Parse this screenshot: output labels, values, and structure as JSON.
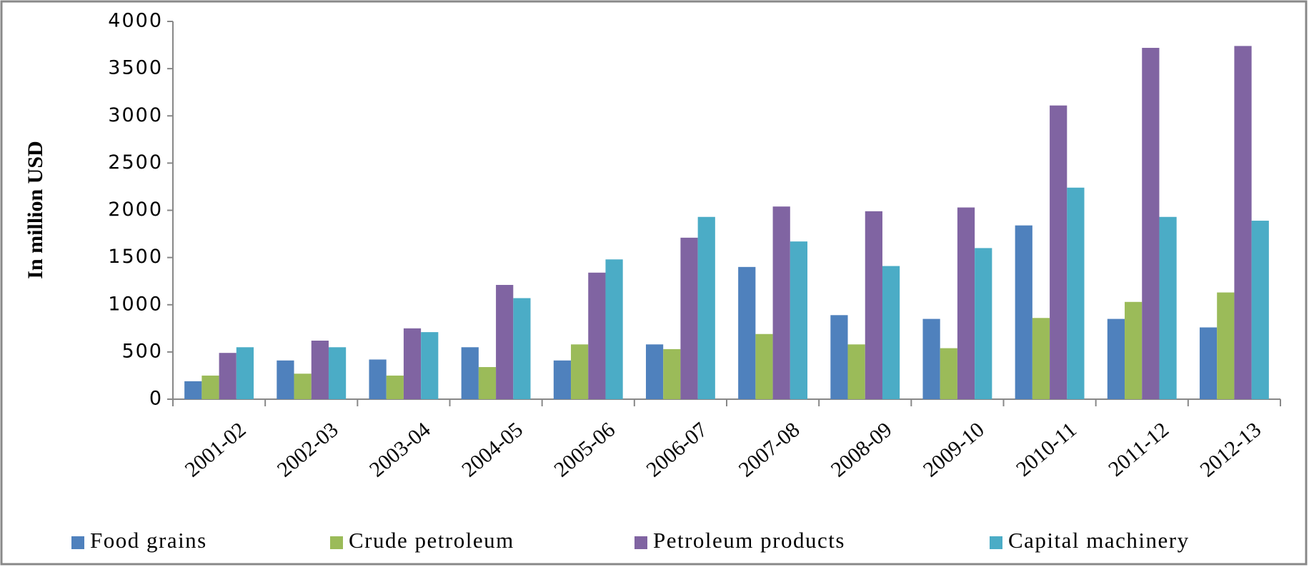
{
  "chart_data": {
    "type": "bar",
    "y_label": "In million USD",
    "categories": [
      "2001-02",
      "2002-03",
      "2003-04",
      "2004-05",
      "2005-06",
      "2006-07",
      "2007-08",
      "2008-09",
      "2009-10",
      "2010-11",
      "2011-12",
      "2012-13"
    ],
    "series": [
      {
        "name": "Food grains",
        "color": "#4f81bd",
        "values": [
          190,
          410,
          420,
          550,
          410,
          580,
          1400,
          890,
          850,
          1840,
          850,
          760
        ]
      },
      {
        "name": "Crude petroleum",
        "color": "#9bbb59",
        "values": [
          250,
          270,
          250,
          340,
          580,
          530,
          690,
          580,
          540,
          860,
          1030,
          1130
        ]
      },
      {
        "name": "Petroleum products",
        "color": "#8064a2",
        "values": [
          490,
          620,
          750,
          1210,
          1340,
          1710,
          2040,
          1990,
          2030,
          3110,
          3720,
          3740
        ]
      },
      {
        "name": "Capital machinery",
        "color": "#4bacc6",
        "values": [
          550,
          550,
          710,
          1070,
          1480,
          1930,
          1670,
          1410,
          1600,
          2240,
          1930,
          1890
        ]
      }
    ],
    "ylim": [
      0,
      4000
    ],
    "yticks": [
      0,
      500,
      1000,
      1500,
      2000,
      2500,
      3000,
      3500,
      4000
    ],
    "grid": false,
    "legend": "bottom"
  }
}
